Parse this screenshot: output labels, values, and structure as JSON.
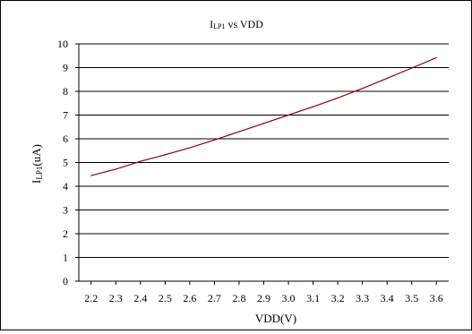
{
  "chart_data": {
    "type": "line",
    "title": {
      "main": "I",
      "sub": "LP1",
      "rest": " vs VDD"
    },
    "xlabel": "VDD(V)",
    "ylabel": {
      "main": "I",
      "sub": "LP1",
      "rest": "(uA)"
    },
    "x_ticks": [
      "2.2",
      "2.3",
      "2.4",
      "2.5",
      "2.6",
      "2.7",
      "2.8",
      "2.9",
      "3.0",
      "3.1",
      "3.2",
      "3.3",
      "3.4",
      "3.5",
      "3.6"
    ],
    "y_ticks": [
      "0",
      "1",
      "2",
      "3",
      "4",
      "5",
      "6",
      "7",
      "8",
      "9",
      "10"
    ],
    "xlim": [
      2.15,
      3.65
    ],
    "ylim": [
      0,
      10
    ],
    "grid": "horizontal",
    "legend": "none",
    "series": [
      {
        "color": "#8b0000",
        "x": [
          2.2,
          2.3,
          2.4,
          2.5,
          2.6,
          2.7,
          2.8,
          2.9,
          3.0,
          3.1,
          3.2,
          3.3,
          3.4,
          3.5,
          3.6
        ],
        "y": [
          4.45,
          4.72,
          5.05,
          5.33,
          5.62,
          5.95,
          6.3,
          6.65,
          7.0,
          7.35,
          7.72,
          8.12,
          8.55,
          8.98,
          9.42
        ]
      }
    ]
  }
}
